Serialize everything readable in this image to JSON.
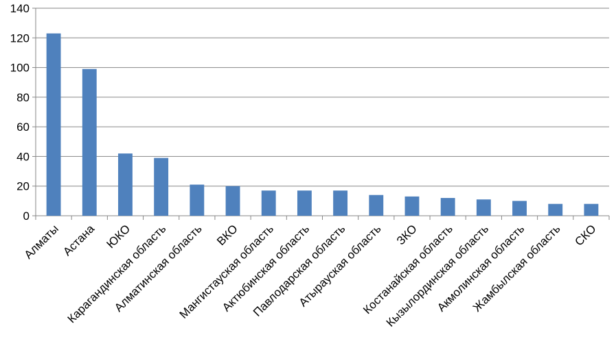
{
  "chart_data": {
    "type": "bar",
    "title": "",
    "xlabel": "",
    "ylabel": "",
    "ylim": [
      0,
      140
    ],
    "yticks": [
      0,
      20,
      40,
      60,
      80,
      100,
      120,
      140
    ],
    "grid": true,
    "legend": "none",
    "bar_color": "#4F81BD",
    "categories": [
      "Алматы",
      "Астана",
      "ЮКО",
      "Карагандинская  область",
      "Алматинская  область",
      "ВКО",
      "Мангистауская  область",
      "Актюбинская  область",
      "Павлодарская  область",
      "Атырауская  область",
      "ЗКО",
      "Костанайская  область",
      "Кызылординская  область",
      "Акмолинская  область",
      "Жамбылская  область",
      "СКО"
    ],
    "values": [
      123,
      99,
      42,
      39,
      21,
      20,
      17,
      17,
      17,
      14,
      13,
      12,
      11,
      10,
      8,
      8
    ]
  }
}
